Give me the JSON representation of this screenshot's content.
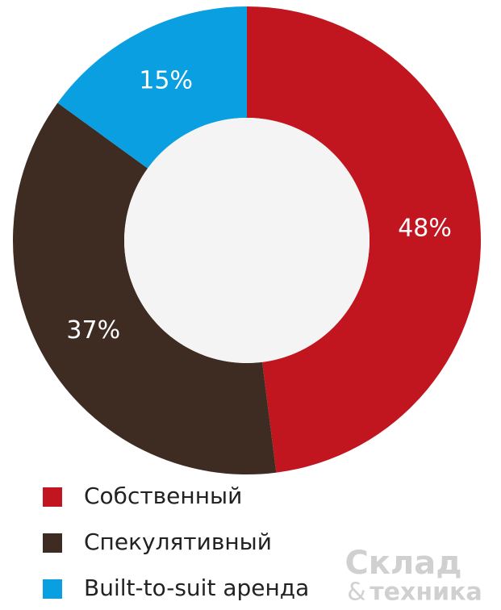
{
  "chart_data": {
    "type": "donut",
    "categories": [
      "Собственный",
      "Спекулятивный",
      "Built-to-suit аренда"
    ],
    "values": [
      48,
      37,
      15
    ],
    "value_labels": [
      "48%",
      "37%",
      "15%"
    ],
    "colors": [
      "#c1161f",
      "#3e2b21",
      "#0a9fe0"
    ],
    "legend": "bottom-left"
  },
  "watermark": {
    "brand": "Склад",
    "amp": "&",
    "tagline": "техника"
  }
}
